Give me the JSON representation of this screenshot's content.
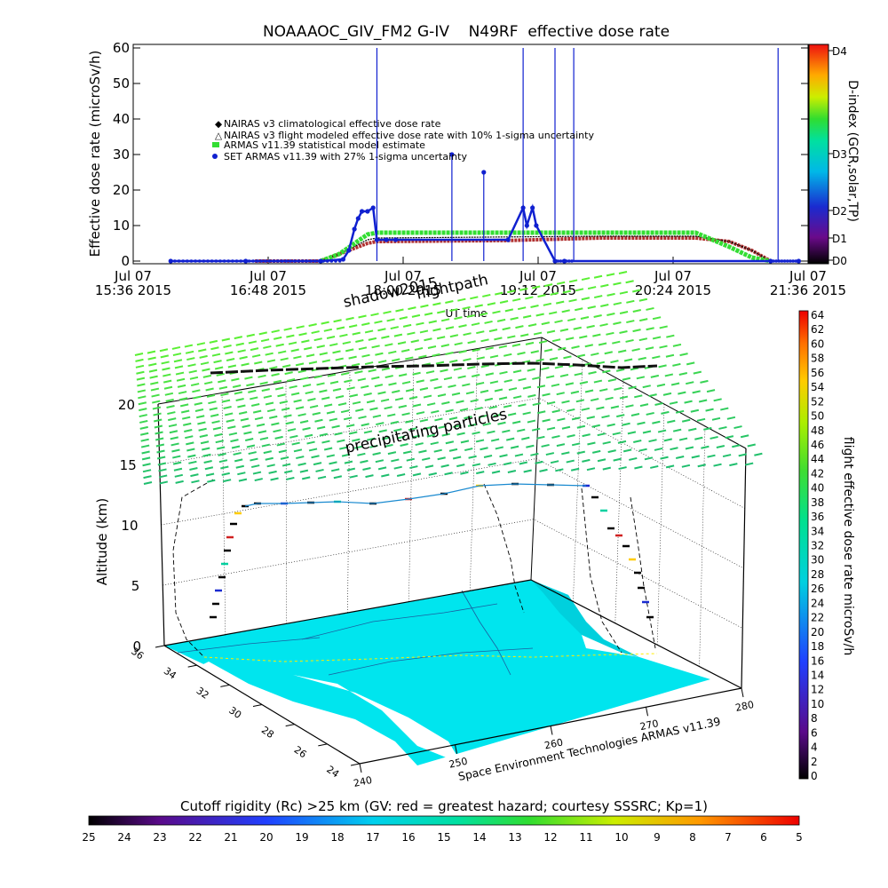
{
  "colors": {
    "nairas_clim": "#b03030",
    "nairas_model": "#000000",
    "armas_stat": "#33dd33",
    "set_armas": "#1020d0",
    "ocean": "#00e5ee",
    "grid": "#000000"
  },
  "chart_data": [
    {
      "type": "line",
      "title": "NOAAAOC_GIV_FM2 G-IV    N49RF  effective dose rate",
      "xlabel": "UT time",
      "ylabel": "Effective dose rate (microSv/h)",
      "ylim": [
        0,
        60
      ],
      "yticks": [
        "0",
        "10",
        "20",
        "30",
        "40",
        "50",
        "60"
      ],
      "xlim_minutes": [
        0,
        360
      ],
      "xticks": [
        {
          "line1": "Jul 07",
          "line2": "15:36 2015",
          "min": 0
        },
        {
          "line1": "Jul 07",
          "line2": "16:48 2015",
          "min": 72
        },
        {
          "line1": "Jul 07",
          "line2": "18:00 2015",
          "min": 144
        },
        {
          "line1": "Jul 07",
          "line2": "19:12 2015",
          "min": 216
        },
        {
          "line1": "Jul 07",
          "line2": "20:24 2015",
          "min": 288
        },
        {
          "line1": "Jul 07",
          "line2": "21:36 2015",
          "min": 360
        }
      ],
      "legend": {
        "placement": "top-left",
        "entries": [
          "NAIRAS v3 climatological effective dose rate",
          "NAIRAS v3 flight modeled effective dose rate with 10% 1-sigma uncertainty",
          "ARMAS v11.39 statistical model estimate",
          "SET ARMAS v11.39 with 27% 1-sigma uncertainty"
        ]
      },
      "series": [
        {
          "name": "NAIRAS v3 climatological effective dose rate",
          "x": [
            65,
            100,
            110,
            125,
            130,
            200,
            250,
            300,
            318,
            330,
            340
          ],
          "y": [
            0,
            0,
            2,
            5,
            5.5,
            5.8,
            6.5,
            6.5,
            5.5,
            3,
            0
          ]
        },
        {
          "name": "NAIRAS v3 flight modeled effective dose rate with 10% 1-sigma uncertainty",
          "x": [
            65,
            100,
            110,
            125,
            130,
            200,
            250,
            300,
            318,
            330,
            340
          ],
          "y": [
            0,
            0,
            2,
            6,
            6.5,
            6.8,
            7,
            7,
            5.5,
            3,
            0
          ]
        },
        {
          "name": "ARMAS v11.39 statistical model estimate",
          "x": [
            100,
            110,
            125,
            130,
            200,
            250,
            300,
            318,
            330,
            340
          ],
          "y": [
            0,
            2,
            7.5,
            8,
            8,
            8,
            8,
            4,
            1,
            0
          ]
        },
        {
          "name": "SET ARMAS v11.39 with 27% 1-sigma uncertainty",
          "x": [
            20,
            60,
            100,
            112,
            115,
            118,
            120,
            122,
            125,
            128,
            130,
            135,
            140,
            200,
            208,
            210,
            213,
            215,
            225,
            230,
            340,
            355
          ],
          "y": [
            0,
            0,
            0,
            0.5,
            3,
            9,
            12,
            14,
            14,
            15,
            6,
            6,
            6,
            6,
            15,
            10,
            15,
            10,
            0,
            0,
            0,
            0
          ]
        }
      ],
      "spikes": [
        {
          "min": 130,
          "y": 60
        },
        {
          "min": 170,
          "y": 30
        },
        {
          "min": 187,
          "y": 25
        },
        {
          "min": 208,
          "y": 60
        },
        {
          "min": 225,
          "y": 60
        },
        {
          "min": 235,
          "y": 60
        },
        {
          "min": 344,
          "y": 60
        }
      ],
      "colorbar": {
        "label": "D-index (GCR,solar,TP)",
        "ticks": [
          "D0",
          "D1",
          "D2",
          "D3",
          "D4"
        ]
      }
    },
    {
      "type": "scatter",
      "zlabel": "Altitude (km)",
      "zticks": [
        "0",
        "5",
        "10",
        "15",
        "20"
      ],
      "lat_ticks": [
        "36",
        "34",
        "32",
        "30",
        "28",
        "26",
        "24"
      ],
      "lon_ticks": [
        "240",
        "250",
        "260",
        "270",
        "280"
      ],
      "annotations": [
        "shadow2015",
        "flightpath",
        "UT time",
        "precipitating particles"
      ],
      "credit": "Space Environment Technologies ARMAS v11.39",
      "right_colorbar": {
        "label": "flight effective dose rate microSv/h",
        "ticks": [
          "0",
          "2",
          "4",
          "6",
          "8",
          "10",
          "12",
          "14",
          "16",
          "18",
          "20",
          "22",
          "24",
          "26",
          "28",
          "30",
          "32",
          "34",
          "36",
          "38",
          "40",
          "42",
          "44",
          "46",
          "48",
          "50",
          "52",
          "54",
          "56",
          "58",
          "60",
          "62",
          "64"
        ]
      },
      "bottom_colorbar": {
        "label": "Cutoff rigidity (Rc) >25 km (GV: red = greatest hazard; courtesy SSSRC; Kp=1)",
        "ticks": [
          "25",
          "24",
          "23",
          "22",
          "21",
          "20",
          "19",
          "18",
          "17",
          "16",
          "15",
          "14",
          "13",
          "12",
          "11",
          "10",
          "9",
          "8",
          "7",
          "6",
          "5"
        ]
      }
    }
  ]
}
